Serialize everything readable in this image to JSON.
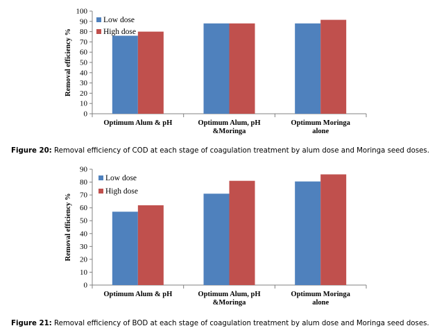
{
  "colors": {
    "low": "#4f81bd",
    "high": "#c0504d",
    "axis": "#808080"
  },
  "chart_data": [
    {
      "type": "bar",
      "ylabel": "Removal efficiency %",
      "xlabel": "",
      "ylim": [
        0,
        100
      ],
      "yticks": [
        "0",
        "10",
        "20",
        "30",
        "40",
        "50",
        "60",
        "70",
        "80",
        "90",
        "100"
      ],
      "categories": [
        "Optimum Alum & pH",
        "Optimum Alum, pH &Moringa",
        "Optimum Moringa alone"
      ],
      "category_lines": [
        [
          "Optimum Alum & pH"
        ],
        [
          "Optimum Alum, pH",
          "&Moringa"
        ],
        [
          "Optimum Moringa",
          "alone"
        ]
      ],
      "series": [
        {
          "name": "Low dose",
          "values": [
            76,
            88,
            88
          ]
        },
        {
          "name": "High dose",
          "values": [
            80,
            88,
            91.5
          ]
        }
      ],
      "legend": "top-left",
      "grid": false
    },
    {
      "type": "bar",
      "ylabel": "Removal efficiency %",
      "xlabel": "",
      "ylim": [
        0,
        90
      ],
      "yticks": [
        "0",
        "10",
        "20",
        "30",
        "40",
        "50",
        "60",
        "70",
        "80",
        "90"
      ],
      "categories": [
        "Optimum Alum & pH",
        "Optimum Alum, pH &Moringa",
        "Optimum Moringa alone"
      ],
      "category_lines": [
        [
          "Optimum Alum & pH"
        ],
        [
          "Optimum Alum, pH",
          "&Moringa"
        ],
        [
          "Optimum Moringa",
          "alone"
        ]
      ],
      "series": [
        {
          "name": "Low dose",
          "values": [
            57,
            71,
            80.5
          ]
        },
        {
          "name": "High dose",
          "values": [
            62,
            81,
            86
          ]
        }
      ],
      "legend": "top-left",
      "grid": false
    }
  ],
  "captions": [
    {
      "label": "Figure 20:",
      "text": " Removal efficiency of COD at each stage of coagulation treatment by alum dose and Moringa seed doses."
    },
    {
      "label": "Figure 21:",
      "text": " Removal efficiency of BOD at each stage of coagulation treatment by alum dose and Moringa seed doses."
    }
  ]
}
